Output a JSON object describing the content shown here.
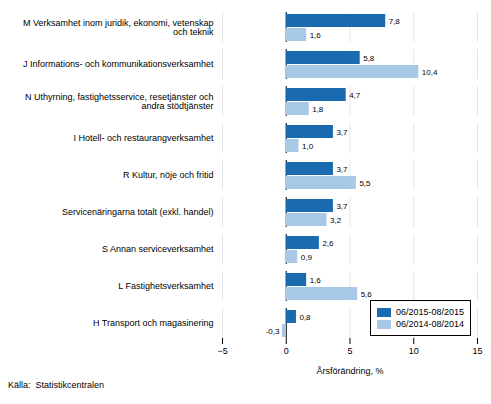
{
  "chart_data": {
    "type": "bar",
    "orientation": "horizontal",
    "categories": [
      "M Verksamhet inom juridik, ekonomi, vetenskap\noch teknik",
      "J Informations- och kommunikationsverksamhet",
      "N Uthyrning, fastighetsservice, resetjänster och\nandra stödtjänster",
      "I Hotell- och restaurangverksamhet",
      "R Kultur, nöje och fritid",
      "Servicenäringarna totalt (exkl. handel)",
      "S Annan serviceverksamhet",
      "L Fastighetsverksamhet",
      "H Transport och magasinering"
    ],
    "series": [
      {
        "name": "06/2015-08/2015",
        "color": "#1A6AAF",
        "values": [
          7.8,
          5.8,
          4.7,
          3.7,
          3.7,
          3.7,
          2.6,
          1.6,
          0.8
        ],
        "value_labels": [
          "7,8",
          "5,8",
          "4,7",
          "3,7",
          "3,7",
          "3,7",
          "2,6",
          "1,6",
          "0,8"
        ]
      },
      {
        "name": "06/2014-08/2014",
        "color": "#A8C8E8",
        "values": [
          1.6,
          10.4,
          1.8,
          1.0,
          5.5,
          3.2,
          0.9,
          5.6,
          -0.3
        ],
        "value_labels": [
          "1,6",
          "10,4",
          "1,8",
          "1,0",
          "5,5",
          "3,2",
          "0,9",
          "5,6",
          "-0,3"
        ]
      }
    ],
    "xlabel": "Årsförändring, %",
    "xlim": [
      -5,
      15
    ],
    "xticks": [
      -5,
      0,
      5,
      10,
      15
    ],
    "grid": true,
    "legend": "lower right",
    "data_labels": true,
    "source": "Källa:  Statistikcentralen"
  }
}
